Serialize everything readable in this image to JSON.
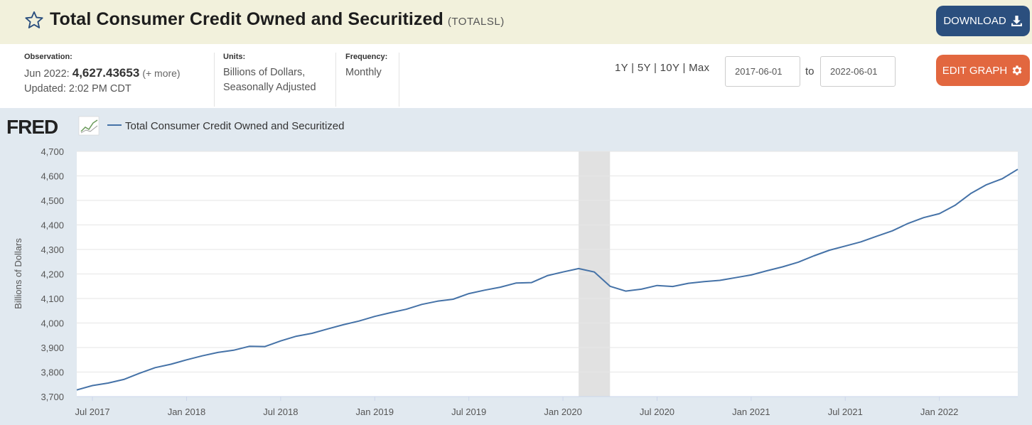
{
  "header": {
    "title": "Total Consumer Credit Owned and Securitized",
    "series_id": "(TOTALSL)",
    "download_label": "DOWNLOAD"
  },
  "meta": {
    "observation_label": "Observation:",
    "observation_period": "Jun 2022:",
    "observation_value": "4,627.43653",
    "observation_more": "(+ more)",
    "updated": "Updated: 2:02 PM CDT",
    "units_label": "Units:",
    "units_line1": "Billions of Dollars,",
    "units_line2": "Seasonally Adjusted",
    "frequency_label": "Frequency:",
    "frequency_value": "Monthly"
  },
  "controls": {
    "range_1y": "1Y",
    "range_5y": "5Y",
    "range_10y": "10Y",
    "range_max": "Max",
    "range_sep": "|",
    "start_date": "2017-06-01",
    "to_label": "to",
    "end_date": "2022-06-01",
    "edit_label": "EDIT GRAPH"
  },
  "chart_data": {
    "type": "line",
    "logo": "FRED",
    "legend": "Total Consumer Credit Owned and Securitized",
    "ylabel": "Billions of Dollars",
    "xlabel": "",
    "ylim": [
      3700,
      4700
    ],
    "yticks": [
      3700,
      3800,
      3900,
      4000,
      4100,
      4200,
      4300,
      4400,
      4500,
      4600,
      4700
    ],
    "ytick_labels": [
      "3,700",
      "3,800",
      "3,900",
      "4,000",
      "4,100",
      "4,200",
      "4,300",
      "4,400",
      "4,500",
      "4,600",
      "4,700"
    ],
    "xticks": [
      "2017-07",
      "2018-01",
      "2018-07",
      "2019-01",
      "2019-07",
      "2020-01",
      "2020-07",
      "2021-01",
      "2021-07",
      "2022-01"
    ],
    "xtick_labels": [
      "Jul 2017",
      "Jan 2018",
      "Jul 2018",
      "Jan 2019",
      "Jul 2019",
      "Jan 2020",
      "Jul 2020",
      "Jan 2021",
      "Jul 2021",
      "Jan 2022"
    ],
    "recession": [
      "2020-02",
      "2020-04"
    ],
    "grid": true,
    "line_color": "#4572a7",
    "recession_color": "#e1e1e1",
    "series": [
      {
        "name": "Total Consumer Credit Owned and Securitized",
        "x": [
          "2017-06",
          "2017-07",
          "2017-08",
          "2017-09",
          "2017-10",
          "2017-11",
          "2017-12",
          "2018-01",
          "2018-02",
          "2018-03",
          "2018-04",
          "2018-05",
          "2018-06",
          "2018-07",
          "2018-08",
          "2018-09",
          "2018-10",
          "2018-11",
          "2018-12",
          "2019-01",
          "2019-02",
          "2019-03",
          "2019-04",
          "2019-05",
          "2019-06",
          "2019-07",
          "2019-08",
          "2019-09",
          "2019-10",
          "2019-11",
          "2019-12",
          "2020-01",
          "2020-02",
          "2020-03",
          "2020-04",
          "2020-05",
          "2020-06",
          "2020-07",
          "2020-08",
          "2020-09",
          "2020-10",
          "2020-11",
          "2020-12",
          "2021-01",
          "2021-02",
          "2021-03",
          "2021-04",
          "2021-05",
          "2021-06",
          "2021-07",
          "2021-08",
          "2021-09",
          "2021-10",
          "2021-11",
          "2021-12",
          "2022-01",
          "2022-02",
          "2022-03",
          "2022-04",
          "2022-05",
          "2022-06"
        ],
        "values": [
          3727,
          3745,
          3755,
          3770,
          3795,
          3818,
          3832,
          3850,
          3866,
          3880,
          3889,
          3905,
          3904,
          3927,
          3946,
          3958,
          3976,
          3993,
          4008,
          4027,
          4042,
          4056,
          4076,
          4089,
          4097,
          4120,
          4134,
          4146,
          4163,
          4165,
          4193,
          4208,
          4222,
          4208,
          4150,
          4130,
          4138,
          4153,
          4149,
          4162,
          4169,
          4174,
          4185,
          4196,
          4213,
          4229,
          4248,
          4274,
          4297,
          4314,
          4331,
          4354,
          4376,
          4406,
          4430,
          4446,
          4480,
          4528,
          4564,
          4588,
          4627
        ]
      }
    ]
  }
}
